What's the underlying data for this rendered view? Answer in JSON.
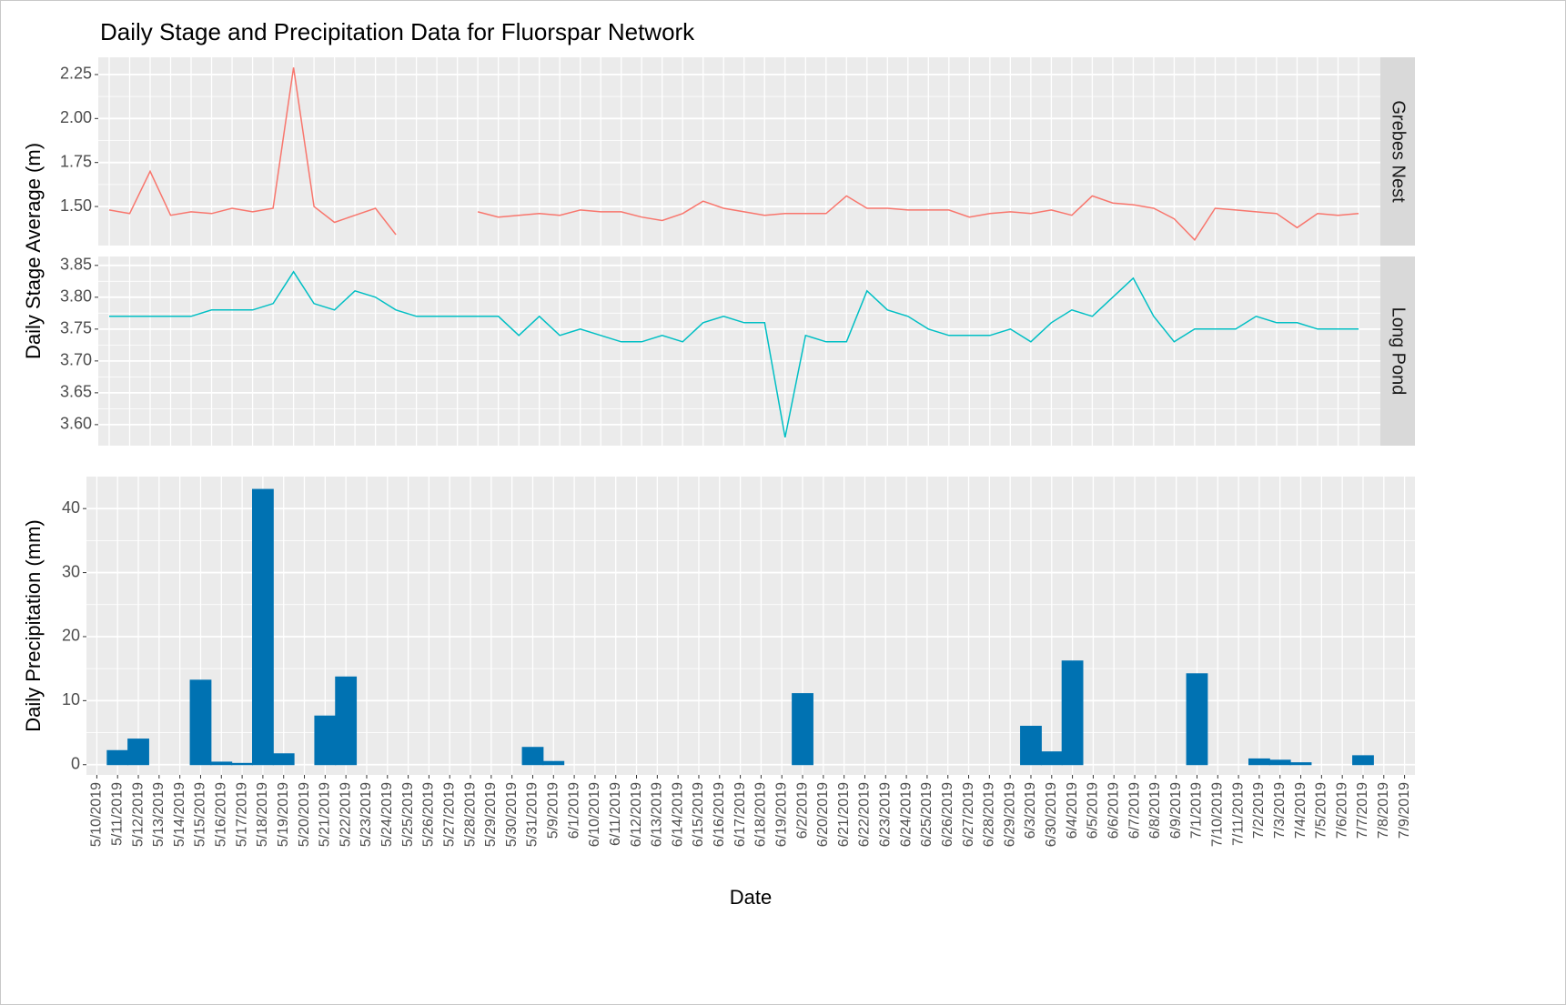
{
  "title": "Daily Stage and Precipitation Data for Fluorspar Network",
  "chart_data": [
    {
      "type": "line",
      "strip": "Grebes Nest",
      "y_label": "Daily Stage Average (m)",
      "color": "#F8766D",
      "values": [
        1.48,
        1.46,
        1.7,
        1.45,
        1.47,
        1.46,
        1.49,
        1.47,
        1.49,
        2.29,
        1.5,
        1.41,
        1.45,
        1.49,
        1.34,
        null,
        null,
        null,
        1.47,
        1.44,
        1.45,
        1.46,
        1.45,
        1.48,
        1.47,
        1.47,
        1.44,
        1.42,
        1.46,
        1.53,
        1.49,
        1.47,
        1.45,
        1.46,
        1.46,
        1.46,
        1.56,
        1.49,
        1.49,
        1.48,
        1.48,
        1.48,
        1.44,
        1.46,
        1.47,
        1.46,
        1.48,
        1.45,
        1.56,
        1.52,
        1.51,
        1.49,
        1.43,
        1.31,
        1.49,
        1.48,
        1.47,
        1.46,
        1.38,
        1.46,
        1.45,
        1.46
      ],
      "ylim": [
        1.278,
        2.348
      ],
      "yticks": [
        {
          "value": 1.5,
          "label": "1.50"
        },
        1.75,
        {
          "value": 2,
          "label": "2.00"
        },
        2.25
      ],
      "grid": true
    },
    {
      "type": "line",
      "strip": "Long Pond",
      "color": "#00BFC4",
      "values": [
        3.77,
        3.77,
        3.77,
        3.77,
        3.77,
        3.78,
        3.78,
        3.78,
        3.79,
        3.84,
        3.79,
        3.78,
        3.81,
        3.8,
        3.78,
        3.77,
        3.77,
        3.77,
        3.77,
        3.77,
        3.74,
        3.77,
        3.74,
        3.75,
        3.74,
        3.73,
        3.73,
        3.74,
        3.73,
        3.76,
        3.77,
        3.76,
        3.76,
        3.58,
        3.74,
        3.73,
        3.73,
        3.81,
        3.78,
        3.77,
        3.75,
        3.74,
        3.74,
        3.74,
        3.75,
        3.73,
        3.76,
        3.78,
        3.77,
        3.8,
        3.83,
        3.77,
        3.73,
        3.75,
        3.75,
        3.75,
        3.77,
        3.76,
        3.76,
        3.75,
        3.75,
        3.75
      ],
      "ylim": [
        3.567,
        3.864
      ],
      "yticks": [
        {
          "value": 3.6,
          "label": "3.60"
        },
        3.65,
        {
          "value": 3.7,
          "label": "3.70"
        },
        3.75,
        {
          "value": 3.8,
          "label": "3.80"
        },
        3.85
      ],
      "grid": true
    },
    {
      "type": "bar",
      "y_label": "Daily Precipitation (mm)",
      "x_label": "Date",
      "color": "#0072B2",
      "categories": [
        "5/10/2019",
        "5/11/2019",
        "5/12/2019",
        "5/13/2019",
        "5/14/2019",
        "5/15/2019",
        "5/16/2019",
        "5/17/2019",
        "5/18/2019",
        "5/19/2019",
        "5/20/2019",
        "5/21/2019",
        "5/22/2019",
        "5/23/2019",
        "5/24/2019",
        "5/25/2019",
        "5/26/2019",
        "5/27/2019",
        "5/28/2019",
        "5/29/2019",
        "5/30/2019",
        "5/31/2019",
        "5/9/2019",
        "6/1/2019",
        "6/10/2019",
        "6/11/2019",
        "6/12/2019",
        "6/13/2019",
        "6/14/2019",
        "6/15/2019",
        "6/16/2019",
        "6/17/2019",
        "6/18/2019",
        "6/19/2019",
        "6/2/2019",
        "6/20/2019",
        "6/21/2019",
        "6/22/2019",
        "6/23/2019",
        "6/24/2019",
        "6/25/2019",
        "6/26/2019",
        "6/27/2019",
        "6/28/2019",
        "6/29/2019",
        "6/3/2019",
        "6/30/2019",
        "6/4/2019",
        "6/5/2019",
        "6/6/2019",
        "6/7/2019",
        "6/8/2019",
        "6/9/2019",
        "7/1/2019",
        "7/10/2019",
        "7/11/2019",
        "7/2/2019",
        "7/3/2019",
        "7/4/2019",
        "7/5/2019",
        "7/6/2019",
        "7/7/2019",
        "7/8/2019",
        "7/9/2019"
      ],
      "values": [
        0,
        2.2,
        4.0,
        0,
        0,
        13.2,
        0.4,
        0.2,
        43,
        1.7,
        0,
        7.6,
        13.7,
        0,
        0,
        0,
        0,
        0,
        0,
        0,
        0,
        2.7,
        0.5,
        null,
        null,
        null,
        null,
        null,
        null,
        null,
        null,
        null,
        null,
        null,
        11.1,
        null,
        null,
        null,
        null,
        null,
        null,
        null,
        null,
        0,
        0,
        6.0,
        2.0,
        16.2,
        null,
        null,
        null,
        null,
        null,
        14.2,
        0,
        0,
        0.9,
        0.7,
        0.3,
        0,
        0,
        1.4,
        0,
        0
      ],
      "ylim": [
        -1.6,
        45
      ],
      "yticks": [
        0,
        10,
        20,
        30,
        40
      ],
      "grid": true
    }
  ]
}
